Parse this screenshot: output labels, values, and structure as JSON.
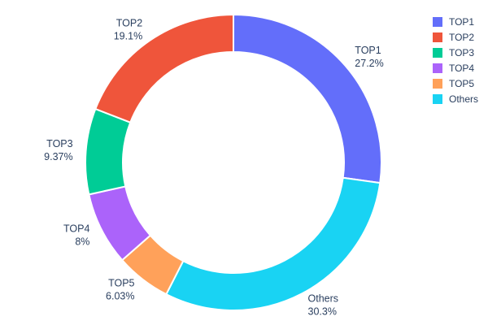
{
  "chart_data": {
    "type": "pie",
    "subtype": "donut",
    "hole": 0.75,
    "title": "",
    "categories": [
      "TOP1",
      "TOP2",
      "TOP3",
      "TOP4",
      "TOP5",
      "Others"
    ],
    "values": [
      27.2,
      19.1,
      9.37,
      8,
      6.03,
      30.3
    ],
    "percent_labels": [
      "27.2%",
      "19.1%",
      "9.37%",
      "8%",
      "6.03%",
      "30.3%"
    ],
    "colors": [
      "#636EFA",
      "#EF553B",
      "#00CC96",
      "#AB63FA",
      "#FFA15A",
      "#19D3F3"
    ],
    "direction": "clockwise",
    "start_angle_deg": 0,
    "clockwise_order_from_top": [
      "TOP1",
      "Others",
      "TOP5",
      "TOP4",
      "TOP3",
      "TOP2"
    ],
    "legend_entries": [
      "TOP1",
      "TOP2",
      "TOP3",
      "TOP4",
      "TOP5",
      "Others"
    ],
    "legend_position": "top-right",
    "label_color": "#2a3f5f",
    "background": "#ffffff"
  }
}
